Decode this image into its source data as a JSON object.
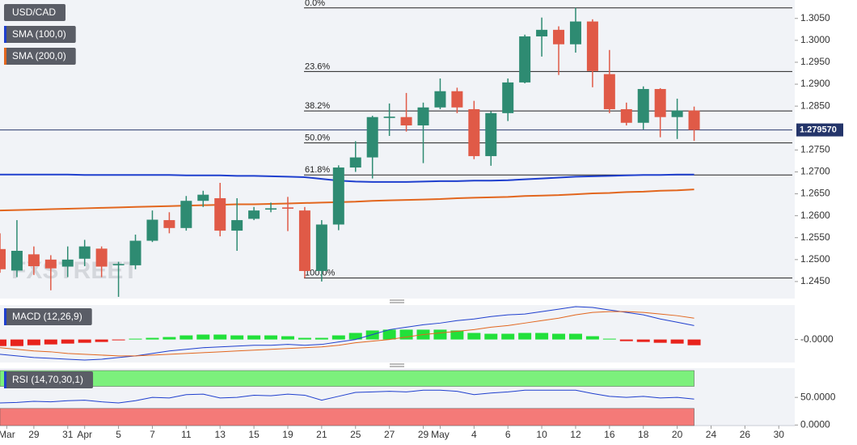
{
  "chart_data": [
    {
      "type": "candlestick",
      "xlim": [
        0,
        46.8
      ],
      "ylim": [
        1.2413,
        1.3092
      ],
      "yticks": [
        {
          "value": 1.305,
          "label": "1.3050"
        },
        {
          "value": 1.3,
          "label": "1.3000"
        },
        {
          "value": 1.295,
          "label": "1.2950"
        },
        {
          "value": 1.29,
          "label": "1.2900"
        },
        {
          "value": 1.285,
          "label": "1.2850"
        },
        {
          "value": 1.275,
          "label": "1.2750"
        },
        {
          "value": 1.27,
          "label": "1.2700"
        },
        {
          "value": 1.265,
          "label": "1.2650"
        },
        {
          "value": 1.26,
          "label": "1.2600"
        },
        {
          "value": 1.255,
          "label": "1.2550"
        },
        {
          "value": 1.25,
          "label": "1.2500"
        },
        {
          "value": 1.245,
          "label": "1.2450"
        }
      ],
      "watermark": "FXSTREET",
      "series": [
        {
          "name": "USD/CAD",
          "type": "candlestick",
          "up_color": "#2e8b72",
          "down_color": "#e05a47",
          "open": [
            1.2524,
            1.2475,
            1.2512,
            1.25,
            1.2484,
            1.2502,
            1.2525,
            1.2487,
            1.2487,
            1.2543,
            1.259,
            1.2572,
            1.2634,
            1.264,
            1.2566,
            1.2593,
            1.2614,
            1.2619,
            1.2612,
            1.2474,
            1.258,
            1.271,
            1.2733,
            1.2823,
            1.2825,
            1.2806,
            1.2847,
            1.2884,
            1.2843,
            1.2736,
            1.2834,
            1.2904,
            1.3009,
            1.3024,
            1.2991,
            1.3043,
            1.2923,
            1.2843,
            1.2812,
            1.2889,
            1.2825,
            1.284
          ],
          "high": [
            1.256,
            1.259,
            1.253,
            1.251,
            1.253,
            1.2545,
            1.253,
            1.2495,
            1.2557,
            1.2612,
            1.2608,
            1.2645,
            1.2657,
            1.2675,
            1.264,
            1.262,
            1.263,
            1.2643,
            1.262,
            1.259,
            1.2715,
            1.277,
            1.2828,
            1.2856,
            1.288,
            1.2858,
            1.2913,
            1.2892,
            1.2862,
            1.2838,
            1.2913,
            1.3013,
            1.3052,
            1.3032,
            1.3074,
            1.3048,
            1.2978,
            1.2858,
            1.2895,
            1.2891,
            1.2867,
            1.2849
          ],
          "low": [
            1.247,
            1.246,
            1.2465,
            1.243,
            1.246,
            1.2485,
            1.246,
            1.2415,
            1.2478,
            1.254,
            1.256,
            1.2566,
            1.262,
            1.2553,
            1.252,
            1.259,
            1.2608,
            1.2565,
            1.2458,
            1.245,
            1.2567,
            1.27,
            1.2685,
            1.2782,
            1.2792,
            1.272,
            1.2843,
            1.2834,
            1.2729,
            1.2714,
            1.2816,
            1.2902,
            1.2963,
            1.2921,
            1.2972,
            1.2893,
            1.2834,
            1.2806,
            1.2797,
            1.2779,
            1.2775,
            1.2771
          ],
          "close": [
            1.2478,
            1.252,
            1.2485,
            1.248,
            1.25,
            1.253,
            1.2484,
            1.249,
            1.2543,
            1.2591,
            1.2572,
            1.2634,
            1.2648,
            1.2566,
            1.259,
            1.2612,
            1.2617,
            1.2616,
            1.2474,
            1.258,
            1.271,
            1.2733,
            1.2825,
            1.2826,
            1.2806,
            1.2847,
            1.2884,
            1.2847,
            1.2736,
            1.2834,
            1.2904,
            1.3009,
            1.3024,
            1.2991,
            1.3043,
            1.293,
            1.2843,
            1.2812,
            1.2889,
            1.2825,
            1.284,
            1.27957
          ]
        },
        {
          "name": "SMA (100,0)",
          "type": "line",
          "color": "#1f3fce",
          "values": [
            1.2694,
            1.2694,
            1.2694,
            1.2694,
            1.2694,
            1.2693,
            1.2693,
            1.2693,
            1.2693,
            1.2693,
            1.2693,
            1.2692,
            1.2692,
            1.2692,
            1.2691,
            1.2691,
            1.269,
            1.2689,
            1.2688,
            1.2684,
            1.268,
            1.2678,
            1.2677,
            1.2677,
            1.2677,
            1.2678,
            1.2679,
            1.2679,
            1.268,
            1.268,
            1.2681,
            1.2683,
            1.2685,
            1.2687,
            1.2689,
            1.269,
            1.2691,
            1.2692,
            1.2693,
            1.2693,
            1.2694,
            1.2694
          ]
        },
        {
          "name": "SMA (200,0)",
          "type": "line",
          "color": "#e2661e",
          "values": [
            1.2612,
            1.2613,
            1.2614,
            1.2615,
            1.2616,
            1.2617,
            1.2618,
            1.2619,
            1.262,
            1.2621,
            1.2622,
            1.2623,
            1.2624,
            1.2625,
            1.2626,
            1.2626,
            1.2627,
            1.2628,
            1.2629,
            1.263,
            1.2631,
            1.2632,
            1.2634,
            1.2635,
            1.2636,
            1.2637,
            1.2638,
            1.264,
            1.2641,
            1.2642,
            1.2643,
            1.2645,
            1.2646,
            1.2647,
            1.2649,
            1.2651,
            1.2652,
            1.2654,
            1.2655,
            1.2657,
            1.2658,
            1.266
          ]
        }
      ],
      "fib_levels": [
        {
          "label": "0.0%",
          "value": 1.3074
        },
        {
          "label": "23.6%",
          "value": 1.2929
        },
        {
          "label": "38.2%",
          "value": 1.2839
        },
        {
          "label": "50.0%",
          "value": 1.2766
        },
        {
          "label": "61.8%",
          "value": 1.2693
        },
        {
          "label": "100.0%",
          "value": 1.2458
        }
      ],
      "last_price": {
        "value": 1.27957,
        "label": "1.279570"
      }
    },
    {
      "type": "macd",
      "title": "MACD (12,26,9)",
      "xlim": [
        0,
        46.8
      ],
      "ylim": [
        -0.0028,
        0.0042
      ],
      "yticks": [
        {
          "value": 0,
          "label": "-0.0000"
        }
      ],
      "histogram": {
        "up_color": "#22e03a",
        "down_color": "#e8231c",
        "values": [
          -0.0008,
          -0.0008,
          -0.0007,
          -0.0006,
          -0.0005,
          -0.0004,
          -0.0003,
          -0.0001,
          0.0001,
          0.0002,
          0.0003,
          0.0005,
          0.0006,
          0.0006,
          0.0005,
          0.0005,
          0.0005,
          0.0004,
          0.0002,
          0.0002,
          0.0005,
          0.0008,
          0.0011,
          0.0012,
          0.0012,
          0.0012,
          0.0012,
          0.0011,
          0.0008,
          0.0007,
          0.0007,
          0.0008,
          0.0008,
          0.0007,
          0.0007,
          0.0004,
          0.0001,
          -0.0002,
          -0.0003,
          -0.0004,
          -0.0005,
          -0.0007
        ]
      },
      "lines": [
        {
          "color": "#1f3fce",
          "values": [
            -0.0018,
            -0.002,
            -0.0022,
            -0.0023,
            -0.0024,
            -0.0025,
            -0.0024,
            -0.0022,
            -0.002,
            -0.0017,
            -0.0014,
            -0.0012,
            -0.001,
            -0.0009,
            -0.0008,
            -0.0007,
            -0.0007,
            -0.0006,
            -0.0007,
            -0.0006,
            -0.0003,
            0.0,
            0.0006,
            0.0012,
            0.0015,
            0.0018,
            0.002,
            0.0023,
            0.0025,
            0.0028,
            0.003,
            0.0031,
            0.0034,
            0.0037,
            0.004,
            0.0039,
            0.0036,
            0.0033,
            0.003,
            0.0025,
            0.0021,
            0.0017
          ]
        },
        {
          "color": "#e2661e",
          "values": [
            -0.001,
            -0.0012,
            -0.0014,
            -0.0015,
            -0.0017,
            -0.0018,
            -0.0019,
            -0.002,
            -0.002,
            -0.0019,
            -0.0018,
            -0.0017,
            -0.0016,
            -0.0015,
            -0.0014,
            -0.0013,
            -0.0012,
            -0.0011,
            -0.001,
            -0.0009,
            -0.0007,
            -0.0004,
            -0.0002,
            0.0,
            0.0003,
            0.0006,
            0.0008,
            0.001,
            0.0012,
            0.0015,
            0.0017,
            0.002,
            0.0023,
            0.0026,
            0.003,
            0.0033,
            0.0034,
            0.0034,
            0.0033,
            0.0031,
            0.0029,
            0.0026
          ]
        }
      ]
    },
    {
      "type": "rsi",
      "title": "RSI (14,70,30,1)",
      "xlim": [
        0,
        46.8
      ],
      "ylim": [
        -1,
        103
      ],
      "yticks": [
        {
          "value": 50,
          "label": "50.0000"
        },
        {
          "value": 0,
          "label": "0.0000"
        }
      ],
      "overbought": 70,
      "oversold": 30,
      "overbought_color": "#7cf07c",
      "oversold_color": "#f47a78",
      "color": "#1f3fce",
      "values": [
        40,
        41,
        43,
        42,
        44,
        45,
        42,
        40,
        44,
        50,
        49,
        55,
        56,
        49,
        50,
        54,
        53,
        56,
        54,
        45,
        52,
        59,
        60,
        61,
        60,
        63,
        63,
        61,
        55,
        58,
        60,
        63,
        63,
        63,
        63,
        57,
        52,
        50,
        52,
        49,
        50,
        47
      ],
      "xticks": [
        {
          "value": 0.4,
          "label": "Mar"
        },
        {
          "value": 2,
          "label": "29"
        },
        {
          "value": 4,
          "label": "31"
        },
        {
          "value": 5,
          "label": "Apr"
        },
        {
          "value": 7,
          "label": "5"
        },
        {
          "value": 9,
          "label": "7"
        },
        {
          "value": 11,
          "label": "11"
        },
        {
          "value": 13,
          "label": "13"
        },
        {
          "value": 15,
          "label": "15"
        },
        {
          "value": 17,
          "label": "19"
        },
        {
          "value": 19,
          "label": "21"
        },
        {
          "value": 21,
          "label": "25"
        },
        {
          "value": 23,
          "label": "27"
        },
        {
          "value": 25,
          "label": "29"
        },
        {
          "value": 26,
          "label": "May"
        },
        {
          "value": 28,
          "label": "4"
        },
        {
          "value": 30,
          "label": "6"
        },
        {
          "value": 32,
          "label": "10"
        },
        {
          "value": 34,
          "label": "12"
        },
        {
          "value": 36,
          "label": "16"
        },
        {
          "value": 38,
          "label": "18"
        },
        {
          "value": 40,
          "label": "20"
        },
        {
          "value": 42,
          "label": "24"
        },
        {
          "value": 44,
          "label": "26"
        },
        {
          "value": 46,
          "label": "30"
        }
      ]
    }
  ]
}
